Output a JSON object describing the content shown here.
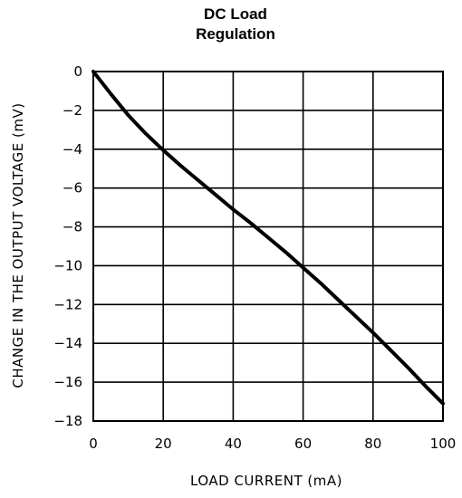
{
  "chart_data": {
    "type": "line",
    "title": "DC Load",
    "subtitle": "Regulation",
    "xlabel": "LOAD CURRENT (mA)",
    "ylabel": "CHANGE IN THE OUTPUT VOLTAGE (mV)",
    "xlim": [
      0,
      100
    ],
    "ylim": [
      -18,
      0
    ],
    "x_ticks": [
      0,
      20,
      40,
      60,
      80,
      100
    ],
    "y_ticks": [
      0,
      -2,
      -4,
      -6,
      -8,
      -10,
      -12,
      -14,
      -16,
      -18
    ],
    "grid": true,
    "series": [
      {
        "color": "#000000",
        "x": [
          0,
          5,
          10,
          15,
          20,
          25,
          30,
          35,
          40,
          45,
          50,
          55,
          60,
          65,
          70,
          75,
          80,
          85,
          90,
          95,
          100
        ],
        "y": [
          0,
          -1.15,
          -2.25,
          -3.2,
          -4.05,
          -4.85,
          -5.6,
          -6.35,
          -7.1,
          -7.8,
          -8.55,
          -9.3,
          -10.1,
          -10.9,
          -11.75,
          -12.6,
          -13.45,
          -14.35,
          -15.25,
          -16.2,
          -17.1
        ]
      }
    ]
  }
}
